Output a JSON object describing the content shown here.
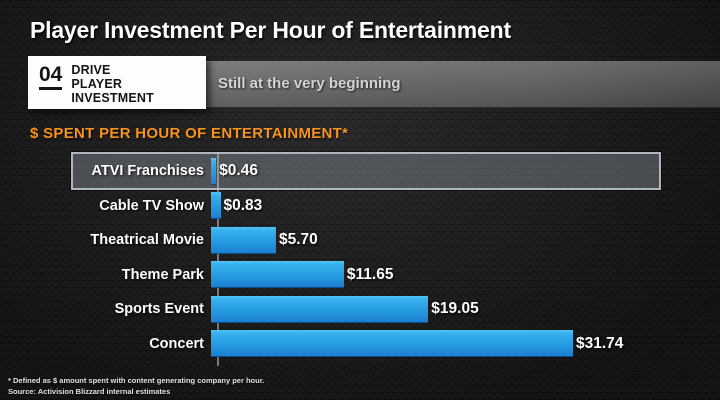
{
  "slide": {
    "title": "Player Investment Per Hour of Entertainment",
    "badge": {
      "number": "04",
      "lines": [
        "DRIVE",
        "PLAYER",
        "INVESTMENT"
      ]
    },
    "banner_text": "Still at the very beginning",
    "section_heading": "$ SPENT PER HOUR OF ENTERTAINMENT*",
    "footnote_line1": "* Defined as $ amount spent with content generating company per hour.",
    "footnote_line2": "Source: Activision Blizzard internal estimates"
  },
  "colors": {
    "accent_orange": "#F7941E",
    "bar_blue_top": "#4FC0F5",
    "bar_blue_bottom": "#1D7ED1",
    "highlight_border": "#AEB6BE",
    "background": "#191919"
  },
  "chart_data": {
    "type": "bar",
    "orientation": "horizontal",
    "title": "$ SPENT PER HOUR OF ENTERTAINMENT*",
    "categories": [
      "ATVI Franchises",
      "Cable TV Show",
      "Theatrical Movie",
      "Theme Park",
      "Sports Event",
      "Concert"
    ],
    "values": [
      0.46,
      0.83,
      5.7,
      11.65,
      19.05,
      31.74
    ],
    "value_labels": [
      "$0.46",
      "$0.83",
      "$5.70",
      "$11.65",
      "$19.05",
      "$31.74"
    ],
    "xlim": [
      0,
      33
    ],
    "grid": false,
    "legend": false,
    "highlighted_category": "ATVI Franchises"
  }
}
